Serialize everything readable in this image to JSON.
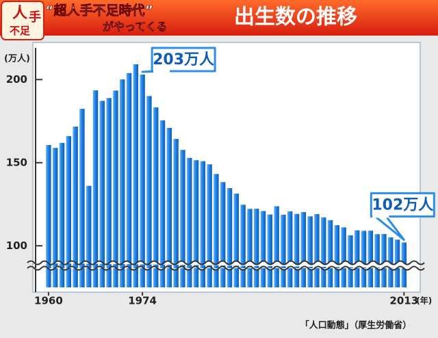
{
  "header": {
    "logo": [
      "人",
      "手",
      "不足"
    ],
    "show": "“超人手不足時代”",
    "show_sub": "がやってくる"
  },
  "chart_data": {
    "type": "bar",
    "title": "出生数の推移",
    "y_label": "(万人)",
    "x_unit": "(年)",
    "categories": [
      "1960",
      null,
      null,
      null,
      null,
      null,
      null,
      null,
      null,
      null,
      null,
      null,
      null,
      null,
      "1974",
      null,
      null,
      null,
      null,
      null,
      null,
      null,
      null,
      null,
      null,
      null,
      null,
      null,
      null,
      null,
      null,
      null,
      null,
      null,
      null,
      null,
      null,
      null,
      null,
      null,
      null,
      null,
      null,
      null,
      null,
      null,
      null,
      null,
      null,
      null,
      null,
      null,
      null,
      "2013"
    ],
    "values": [
      160.6,
      158.9,
      161.9,
      166.0,
      171.7,
      182.4,
      136.1,
      193.5,
      187.2,
      188.9,
      193.4,
      200.1,
      203.9,
      209.2,
      203,
      190.1,
      183.3,
      175.5,
      170.9,
      164.3,
      157.7,
      152.9,
      151.5,
      150.9,
      149.0,
      143.2,
      138.3,
      134.7,
      131.4,
      124.7,
      122.2,
      122.3,
      120.9,
      118.8,
      123.8,
      118.7,
      120.7,
      119.2,
      120.3,
      117.7,
      119.1,
      117.1,
      115.4,
      112.4,
      111.1,
      106.3,
      109.3,
      109.0,
      109.1,
      107.0,
      107.1,
      105.1,
      103.7,
      102
    ],
    "color": "#1f7fe0",
    "ylim": [
      75,
      217
    ],
    "yticks": [
      100,
      150,
      200
    ],
    "annotations": [
      {
        "text": "203万人",
        "index": 14
      },
      {
        "text": "102万人",
        "index": 53
      }
    ],
    "source": "「人口動態」（厚生労働省）"
  }
}
